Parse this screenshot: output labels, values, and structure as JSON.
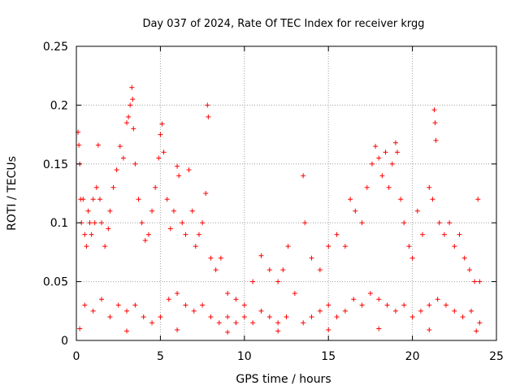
{
  "chart_data": {
    "type": "scatter",
    "title": "Day 037 of 2024, Rate Of TEC Index for receiver krgg",
    "xlabel": "GPS time / hours",
    "ylabel": "ROTI / TECUs",
    "xlim": [
      0,
      25
    ],
    "ylim": [
      0,
      0.25
    ],
    "x_ticks": [
      "0",
      "5",
      "10",
      "15",
      "20",
      "25"
    ],
    "y_ticks": [
      "0",
      "0.05",
      "0.1",
      "0.15",
      "0.2",
      "0.25"
    ],
    "grid": true,
    "marker": "+",
    "color": "#ff0000",
    "series": [
      {
        "name": "",
        "points": [
          [
            0.1,
            0.177
          ],
          [
            0.15,
            0.166
          ],
          [
            0.2,
            0.15
          ],
          [
            0.25,
            0.12
          ],
          [
            0.3,
            0.1
          ],
          [
            0.4,
            0.12
          ],
          [
            0.5,
            0.09
          ],
          [
            0.6,
            0.08
          ],
          [
            0.7,
            0.11
          ],
          [
            0.8,
            0.1
          ],
          [
            0.9,
            0.09
          ],
          [
            1.0,
            0.12
          ],
          [
            1.1,
            0.1
          ],
          [
            1.2,
            0.13
          ],
          [
            1.3,
            0.166
          ],
          [
            1.4,
            0.12
          ],
          [
            1.5,
            0.1
          ],
          [
            1.7,
            0.08
          ],
          [
            1.9,
            0.095
          ],
          [
            2.0,
            0.11
          ],
          [
            2.2,
            0.13
          ],
          [
            2.4,
            0.145
          ],
          [
            2.6,
            0.165
          ],
          [
            2.8,
            0.155
          ],
          [
            3.0,
            0.185
          ],
          [
            3.1,
            0.19
          ],
          [
            3.2,
            0.2
          ],
          [
            3.3,
            0.215
          ],
          [
            3.35,
            0.205
          ],
          [
            3.4,
            0.18
          ],
          [
            3.5,
            0.15
          ],
          [
            3.7,
            0.12
          ],
          [
            3.9,
            0.1
          ],
          [
            4.1,
            0.085
          ],
          [
            4.3,
            0.09
          ],
          [
            4.5,
            0.11
          ],
          [
            4.7,
            0.13
          ],
          [
            4.9,
            0.155
          ],
          [
            5.0,
            0.175
          ],
          [
            5.1,
            0.184
          ],
          [
            5.2,
            0.16
          ],
          [
            5.4,
            0.12
          ],
          [
            5.6,
            0.095
          ],
          [
            5.8,
            0.11
          ],
          [
            6.0,
            0.148
          ],
          [
            6.1,
            0.14
          ],
          [
            6.3,
            0.1
          ],
          [
            6.5,
            0.09
          ],
          [
            6.7,
            0.145
          ],
          [
            6.9,
            0.11
          ],
          [
            7.1,
            0.08
          ],
          [
            7.3,
            0.09
          ],
          [
            7.5,
            0.1
          ],
          [
            7.7,
            0.125
          ],
          [
            7.8,
            0.2
          ],
          [
            7.85,
            0.19
          ],
          [
            8.0,
            0.07
          ],
          [
            8.3,
            0.06
          ],
          [
            8.6,
            0.07
          ],
          [
            9.0,
            0.04
          ],
          [
            9.5,
            0.035
          ],
          [
            10.0,
            0.03
          ],
          [
            10.5,
            0.05
          ],
          [
            11.0,
            0.072
          ],
          [
            11.5,
            0.06
          ],
          [
            12.0,
            0.05
          ],
          [
            12.3,
            0.06
          ],
          [
            12.6,
            0.08
          ],
          [
            13.0,
            0.04
          ],
          [
            13.5,
            0.14
          ],
          [
            13.6,
            0.1
          ],
          [
            14.0,
            0.07
          ],
          [
            14.5,
            0.06
          ],
          [
            15.0,
            0.08
          ],
          [
            15.5,
            0.09
          ],
          [
            16.0,
            0.08
          ],
          [
            16.3,
            0.12
          ],
          [
            16.6,
            0.11
          ],
          [
            17.0,
            0.1
          ],
          [
            17.3,
            0.13
          ],
          [
            17.6,
            0.15
          ],
          [
            17.8,
            0.165
          ],
          [
            18.0,
            0.155
          ],
          [
            18.2,
            0.14
          ],
          [
            18.4,
            0.16
          ],
          [
            18.6,
            0.13
          ],
          [
            18.8,
            0.15
          ],
          [
            19.0,
            0.168
          ],
          [
            19.1,
            0.16
          ],
          [
            19.3,
            0.12
          ],
          [
            19.5,
            0.1
          ],
          [
            19.8,
            0.08
          ],
          [
            20.0,
            0.07
          ],
          [
            20.3,
            0.11
          ],
          [
            20.6,
            0.09
          ],
          [
            21.0,
            0.13
          ],
          [
            21.2,
            0.12
          ],
          [
            21.3,
            0.196
          ],
          [
            21.35,
            0.185
          ],
          [
            21.4,
            0.17
          ],
          [
            21.6,
            0.1
          ],
          [
            21.9,
            0.09
          ],
          [
            22.2,
            0.1
          ],
          [
            22.5,
            0.08
          ],
          [
            22.8,
            0.09
          ],
          [
            23.1,
            0.07
          ],
          [
            23.4,
            0.06
          ],
          [
            23.7,
            0.05
          ],
          [
            23.9,
            0.12
          ],
          [
            24.0,
            0.05
          ],
          [
            0.5,
            0.03
          ],
          [
            1.0,
            0.025
          ],
          [
            1.5,
            0.035
          ],
          [
            2.0,
            0.02
          ],
          [
            2.5,
            0.03
          ],
          [
            3.0,
            0.025
          ],
          [
            3.5,
            0.03
          ],
          [
            4.0,
            0.02
          ],
          [
            4.5,
            0.015
          ],
          [
            5.0,
            0.02
          ],
          [
            5.5,
            0.035
          ],
          [
            6.0,
            0.04
          ],
          [
            6.5,
            0.03
          ],
          [
            7.0,
            0.025
          ],
          [
            7.5,
            0.03
          ],
          [
            8.0,
            0.02
          ],
          [
            8.5,
            0.015
          ],
          [
            9.0,
            0.02
          ],
          [
            9.5,
            0.015
          ],
          [
            10.0,
            0.02
          ],
          [
            10.5,
            0.015
          ],
          [
            11.0,
            0.025
          ],
          [
            11.5,
            0.02
          ],
          [
            12.0,
            0.015
          ],
          [
            12.5,
            0.02
          ],
          [
            13.5,
            0.015
          ],
          [
            14.0,
            0.02
          ],
          [
            14.5,
            0.025
          ],
          [
            15.0,
            0.03
          ],
          [
            15.5,
            0.02
          ],
          [
            16.0,
            0.025
          ],
          [
            16.5,
            0.035
          ],
          [
            17.0,
            0.03
          ],
          [
            17.5,
            0.04
          ],
          [
            18.0,
            0.035
          ],
          [
            18.5,
            0.03
          ],
          [
            19.0,
            0.025
          ],
          [
            19.5,
            0.03
          ],
          [
            20.0,
            0.02
          ],
          [
            20.5,
            0.025
          ],
          [
            21.0,
            0.03
          ],
          [
            21.5,
            0.035
          ],
          [
            22.0,
            0.03
          ],
          [
            22.5,
            0.025
          ],
          [
            23.0,
            0.02
          ],
          [
            23.5,
            0.025
          ],
          [
            24.0,
            0.015
          ],
          [
            0.2,
            0.01
          ],
          [
            3.0,
            0.008
          ],
          [
            6.0,
            0.009
          ],
          [
            9.0,
            0.007
          ],
          [
            12.0,
            0.008
          ],
          [
            15.0,
            0.009
          ],
          [
            18.0,
            0.01
          ],
          [
            21.0,
            0.009
          ],
          [
            23.8,
            0.008
          ]
        ]
      }
    ]
  }
}
